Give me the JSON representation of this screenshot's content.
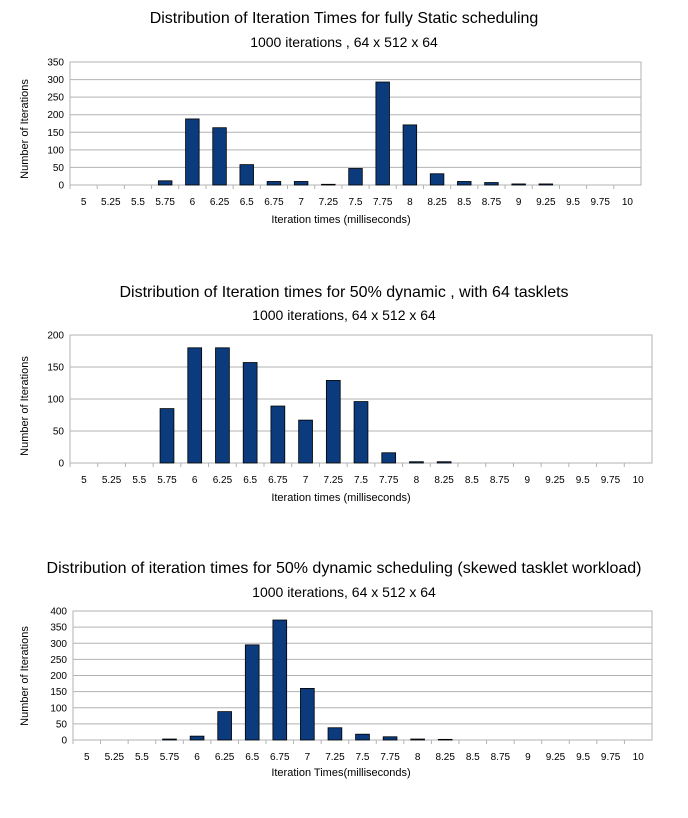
{
  "chart_data": [
    {
      "type": "bar",
      "title": "Distribution of Iteration Times for fully Static scheduling",
      "subtitle": "1000 iterations , 64 x 512 x 64",
      "xlabel": "Iteration times (milliseconds)",
      "ylabel": "Number of Iterations",
      "categories": [
        "5",
        "5.25",
        "5.5",
        "5.75",
        "6",
        "6.25",
        "6.5",
        "6.75",
        "7",
        "7.25",
        "7.5",
        "7.75",
        "8",
        "8.25",
        "8.5",
        "8.75",
        "9",
        "9.25",
        "9.5",
        "9.75",
        "10"
      ],
      "values": [
        0,
        0,
        0,
        12,
        188,
        163,
        58,
        10,
        10,
        2,
        47,
        293,
        171,
        32,
        10,
        7,
        3,
        3,
        0,
        0,
        0
      ],
      "ylim": [
        0,
        350
      ],
      "yticks": [
        0,
        50,
        100,
        150,
        200,
        250,
        300,
        350
      ],
      "grid": true,
      "bar_color": "#0b3b7c"
    },
    {
      "type": "bar",
      "title": "Distribution of Iteration times for 50% dynamic , with 64 tasklets",
      "subtitle": "1000 iterations, 64 x 512 x 64",
      "xlabel": "Iteration times (milliseconds)",
      "ylabel": "Number of Iterations",
      "categories": [
        "5",
        "5.25",
        "5.5",
        "5.75",
        "6",
        "6.25",
        "6.5",
        "6.75",
        "7",
        "7.25",
        "7.5",
        "7.75",
        "8",
        "8.25",
        "8.5",
        "8.75",
        "9",
        "9.25",
        "9.5",
        "9.75",
        "10"
      ],
      "values": [
        0,
        0,
        0,
        85,
        180,
        180,
        157,
        89,
        67,
        129,
        96,
        16,
        2,
        2,
        0,
        0,
        0,
        0,
        0,
        0,
        0
      ],
      "ylim": [
        0,
        200
      ],
      "yticks": [
        0,
        50,
        100,
        150,
        200
      ],
      "grid": true,
      "bar_color": "#0b3b7c"
    },
    {
      "type": "bar",
      "title": "Distribution of iteration times for 50% dynamic scheduling (skewed tasklet workload)",
      "subtitle": "1000 iterations, 64 x 512 x 64",
      "xlabel": "Iteration Times(milliseconds)",
      "ylabel": "Number of Iterations",
      "categories": [
        "5",
        "5.25",
        "5.5",
        "5.75",
        "6",
        "6.25",
        "6.5",
        "6.75",
        "7",
        "7.25",
        "7.5",
        "7.75",
        "8",
        "8.25",
        "8.5",
        "8.75",
        "9",
        "9.25",
        "9.5",
        "9.75",
        "10"
      ],
      "values": [
        0,
        0,
        0,
        3,
        12,
        88,
        295,
        372,
        160,
        38,
        18,
        10,
        3,
        2,
        0,
        0,
        0,
        0,
        0,
        0,
        0
      ],
      "ylim": [
        0,
        400
      ],
      "yticks": [
        0,
        50,
        100,
        150,
        200,
        250,
        300,
        350,
        400
      ],
      "grid": true,
      "bar_color": "#0b3b7c"
    }
  ]
}
